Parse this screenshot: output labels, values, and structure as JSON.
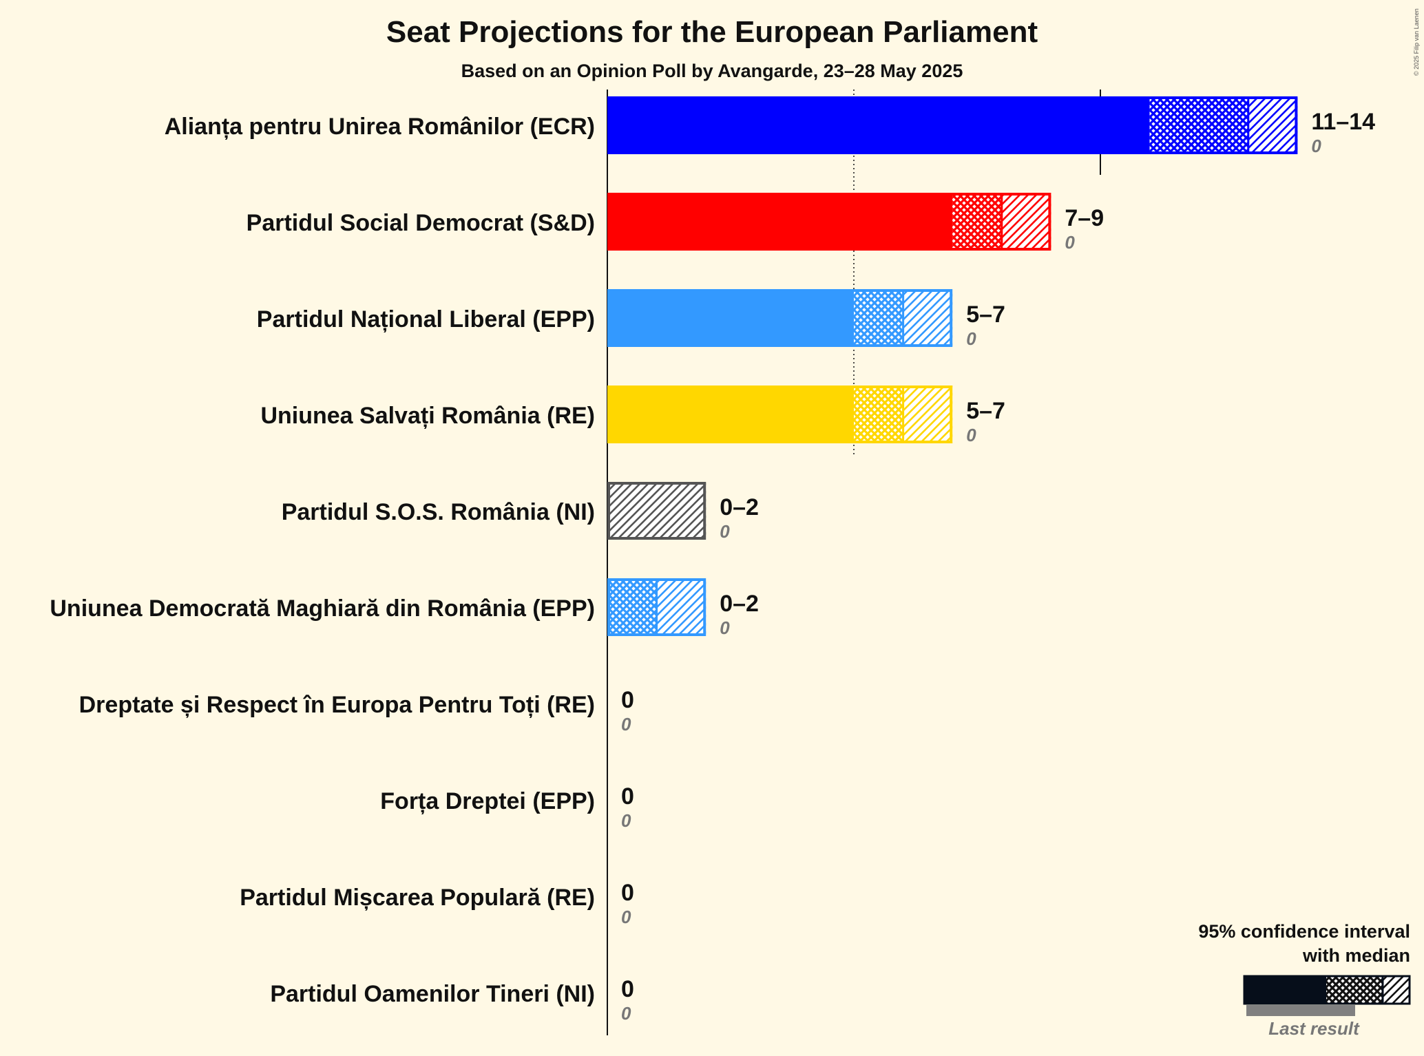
{
  "title": "Seat Projections for the European Parliament",
  "subtitle": "Based on an Opinion Poll by Avangarde, 23–28 May 2025",
  "copyright": "© 2025 Filip van Laenen",
  "legend": {
    "title_line1": "95% confidence interval",
    "title_line2": "with median",
    "last_result": "Last result"
  },
  "chart_data": {
    "type": "bar",
    "orientation": "horizontal",
    "title": "Seat Projections for the European Parliament",
    "subtitle": "Based on an Opinion Poll by Avangarde, 23–28 May 2025",
    "xlim": [
      0,
      14
    ],
    "reference_lines": [
      5,
      10
    ],
    "series": [
      {
        "name": "Alianța pentru Unirea Românilor (ECR)",
        "low": 11,
        "median": 13,
        "high": 14,
        "label": "11–14",
        "last_result": "0",
        "color": "#0000FF"
      },
      {
        "name": "Partidul Social Democrat (S&D)",
        "low": 7,
        "median": 8,
        "high": 9,
        "label": "7–9",
        "last_result": "0",
        "color": "#FF0000"
      },
      {
        "name": "Partidul Național Liberal (EPP)",
        "low": 5,
        "median": 6,
        "high": 7,
        "label": "5–7",
        "last_result": "0",
        "color": "#3399FF"
      },
      {
        "name": "Uniunea Salvați România (RE)",
        "low": 5,
        "median": 6,
        "high": 7,
        "label": "5–7",
        "last_result": "0",
        "color": "#FFD700"
      },
      {
        "name": "Partidul S.O.S. România (NI)",
        "low": 0,
        "median": 0,
        "high": 2,
        "label": "0–2",
        "last_result": "0",
        "color": "#555555"
      },
      {
        "name": "Uniunea Democrată Maghiară din România (EPP)",
        "low": 0,
        "median": 1,
        "high": 2,
        "label": "0–2",
        "last_result": "0",
        "color": "#3399FF"
      },
      {
        "name": "Dreptate și Respect în Europa Pentru Toți (RE)",
        "low": 0,
        "median": 0,
        "high": 0,
        "label": "0",
        "last_result": "0",
        "color": "#555555"
      },
      {
        "name": "Forța Dreptei (EPP)",
        "low": 0,
        "median": 0,
        "high": 0,
        "label": "0",
        "last_result": "0",
        "color": "#3399FF"
      },
      {
        "name": "Partidul Mișcarea Populară (RE)",
        "low": 0,
        "median": 0,
        "high": 0,
        "label": "0",
        "last_result": "0",
        "color": "#3399FF"
      },
      {
        "name": "Partidul Oamenilor Tineri (NI)",
        "low": 0,
        "median": 0,
        "high": 0,
        "label": "0",
        "last_result": "0",
        "color": "#555555"
      }
    ]
  }
}
